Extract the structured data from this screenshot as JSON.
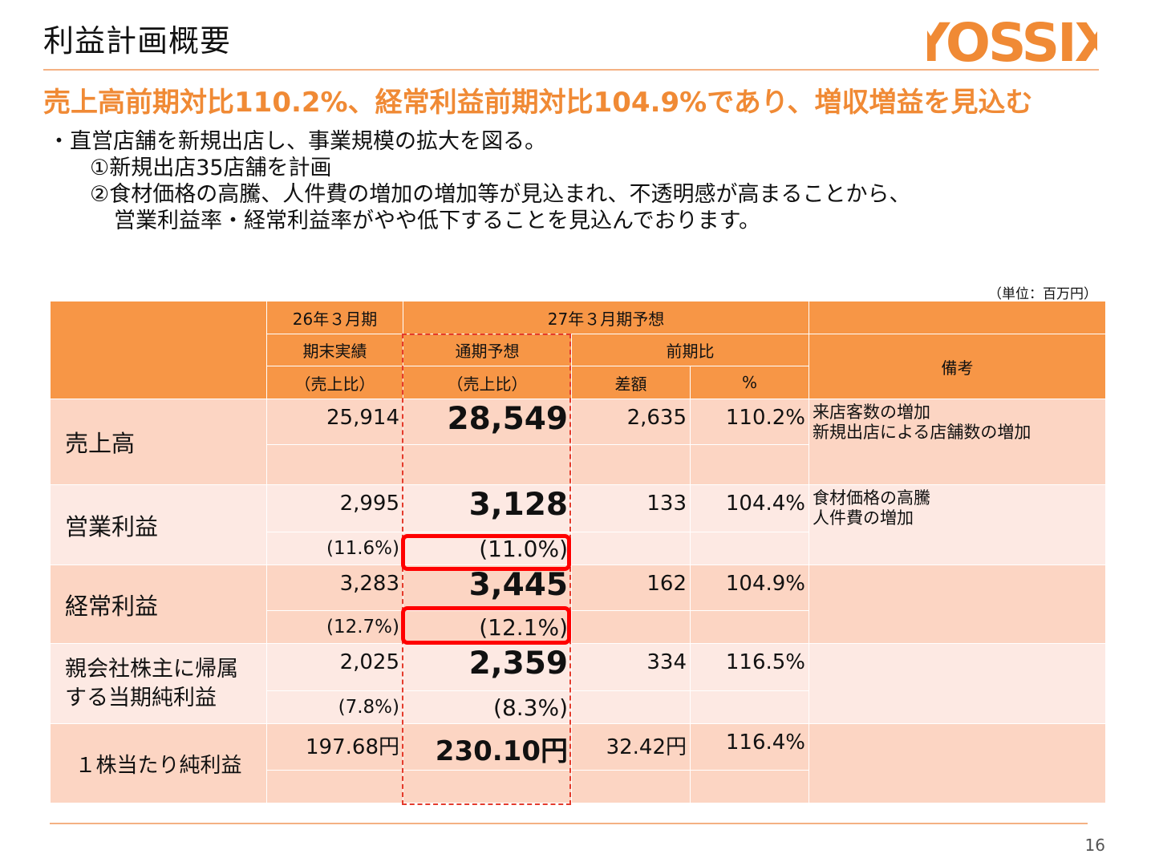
{
  "header": {
    "title": "利益計画概要",
    "logo_text": "YOSSIX",
    "brand_color": "#f08a35"
  },
  "headline": "売上高前期対比110.2%、経常利益前期対比104.9%であり、増収増益を見込む",
  "body": {
    "line1": "・直営店舗を新規出店し、事業規模の拡大を図る。",
    "line2": "①新規出店35店舗を計画",
    "line3": "②食材価格の高騰、人件費の増加の増加等が見込まれ、不透明感が高まることから、",
    "line4": "営業利益率・経常利益率がやや低下することを見込んでおります。"
  },
  "unit_note": "（単位：百万円）",
  "table": {
    "head": {
      "col_prev": "26年３月期",
      "col_forecast_group": "27年３月期予想",
      "prev_actual": "期末実績",
      "prev_ratio": "（売上比）",
      "fc_full": "通期予想",
      "fc_ratio": "（売上比）",
      "yoy": "前期比",
      "diff": "差額",
      "percent": "%",
      "remarks": "備考"
    },
    "rows": [
      {
        "label": "売上高",
        "prev": "25,914",
        "prev_ratio": "",
        "forecast": "28,549",
        "forecast_ratio": "",
        "diff": "2,635",
        "pct": "110.2%",
        "note1": "来店客数の増加",
        "note2": "新規出店による店舗数の増加"
      },
      {
        "label": "営業利益",
        "prev": "2,995",
        "prev_ratio": "(11.6%)",
        "forecast": "3,128",
        "forecast_ratio": "(11.0%)",
        "diff": "133",
        "pct": "104.4%",
        "note1": "食材価格の高騰",
        "note2": "人件費の増加"
      },
      {
        "label": "経常利益",
        "prev": "3,283",
        "prev_ratio": "(12.7%)",
        "forecast": "3,445",
        "forecast_ratio": "(12.1%)",
        "diff": "162",
        "pct": "104.9%",
        "note1": "",
        "note2": ""
      },
      {
        "label1": "親会社株主に帰属",
        "label2": "する当期純利益",
        "prev": "2,025",
        "prev_ratio": "(7.8%)",
        "forecast": "2,359",
        "forecast_ratio": "(8.3%)",
        "diff": "334",
        "pct": "116.5%",
        "note1": "",
        "note2": ""
      },
      {
        "label": "１株当たり純利益",
        "prev": "197.68円",
        "prev_ratio": "",
        "forecast": "230.10円",
        "forecast_ratio": "",
        "diff": "32.42円",
        "pct": "116.4%",
        "note1": "",
        "note2": ""
      }
    ]
  },
  "colors": {
    "header_fill": "#f79646",
    "row_dark": "#fcd5c3",
    "row_light": "#fde9e3",
    "highlight": "#ff0000",
    "dashed_frame": "#e43b2c"
  },
  "page_number": "16"
}
